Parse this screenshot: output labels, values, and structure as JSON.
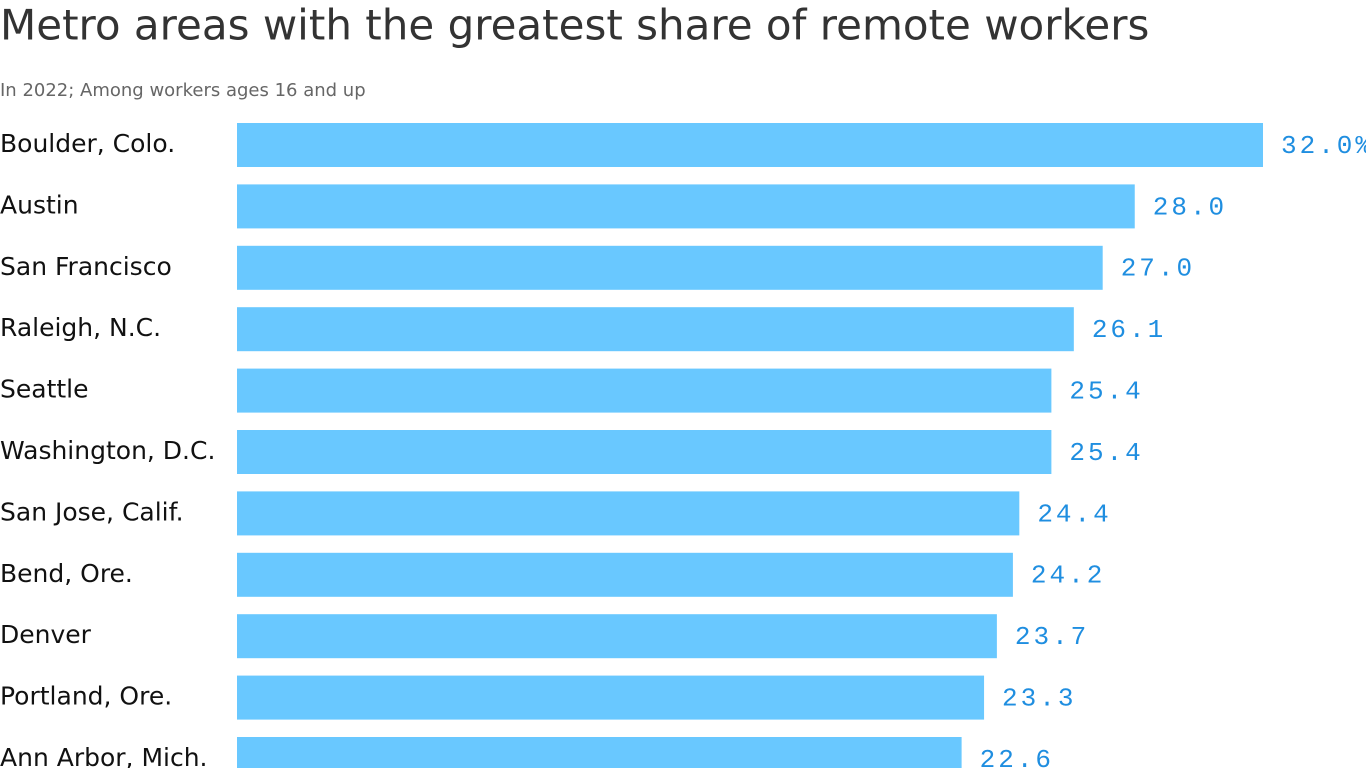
{
  "chart_data": {
    "type": "bar",
    "orientation": "horizontal",
    "title": "Metro areas with the greatest share of remote workers",
    "subtitle": "In 2022; Among workers ages 16 and up",
    "categories": [
      "Boulder, Colo.",
      "Austin",
      "San Francisco",
      "Raleigh, N.C.",
      "Seattle",
      "Washington, D.C.",
      "San Jose, Calif.",
      "Bend, Ore.",
      "Denver",
      "Portland, Ore.",
      "Ann Arbor, Mich."
    ],
    "values": [
      32.0,
      28.0,
      27.0,
      26.1,
      25.4,
      25.4,
      24.4,
      24.2,
      23.7,
      23.3,
      22.6
    ],
    "value_labels": [
      "32.0%",
      "28.0",
      "27.0",
      "26.1",
      "25.4",
      "25.4",
      "24.4",
      "24.2",
      "23.7",
      "23.3",
      "22.6"
    ],
    "color": "#69c8ff",
    "label_color": "#1f8ee0"
  }
}
